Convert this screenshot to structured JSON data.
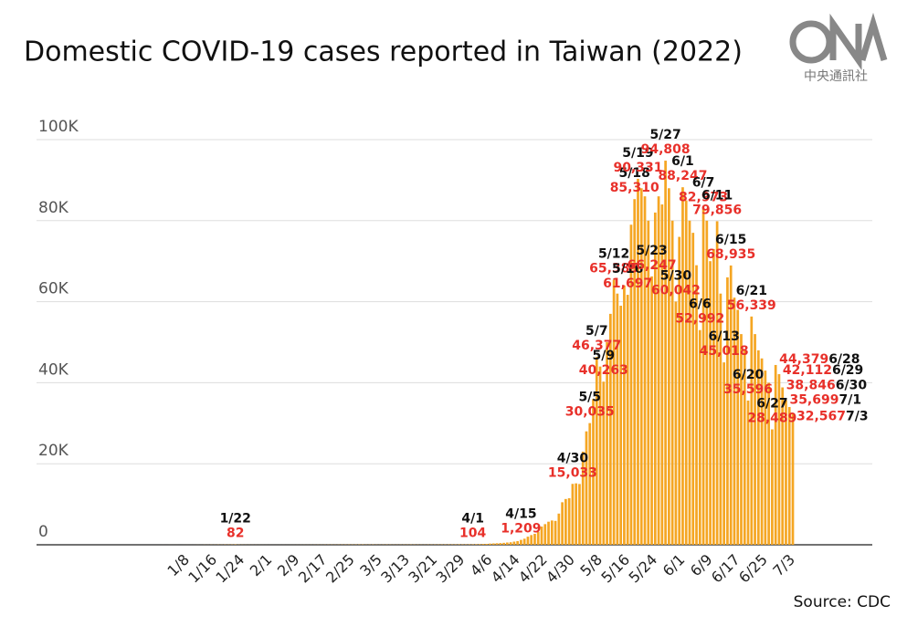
{
  "chart_data": {
    "type": "bar",
    "title": "Domestic COVID-19 cases reported in Taiwan (2022)",
    "source": "Source: CDC",
    "logo_text": "中央通訊社",
    "color": "#f5a623",
    "label_color": "#e8302a",
    "date_color": "#111111",
    "grid": true,
    "ylim": [
      0,
      100000
    ],
    "yticks": [
      0,
      {
        "value": 20000,
        "label": "20K"
      },
      {
        "value": 40000,
        "label": "40K"
      },
      {
        "value": 60000,
        "label": "60K"
      },
      {
        "value": 80000,
        "label": "80K"
      },
      {
        "value": 100000,
        "label": "100K"
      }
    ],
    "categories": [
      null,
      null,
      null,
      null,
      null,
      null,
      null,
      "1/8",
      null,
      null,
      null,
      null,
      null,
      null,
      null,
      "1/16",
      null,
      null,
      null,
      null,
      null,
      null,
      null,
      "1/24",
      null,
      null,
      null,
      null,
      null,
      null,
      null,
      "2/1",
      null,
      null,
      null,
      null,
      null,
      null,
      null,
      "2/9",
      null,
      null,
      null,
      null,
      null,
      null,
      null,
      "2/17",
      null,
      null,
      null,
      null,
      null,
      null,
      null,
      "2/25",
      null,
      null,
      null,
      null,
      null,
      null,
      null,
      "3/5",
      null,
      null,
      null,
      null,
      null,
      null,
      null,
      "3/13",
      null,
      null,
      null,
      null,
      null,
      null,
      null,
      "3/21",
      null,
      null,
      null,
      null,
      null,
      null,
      null,
      "3/29",
      null,
      null,
      null,
      null,
      null,
      null,
      null,
      "4/6",
      null,
      null,
      null,
      null,
      null,
      null,
      null,
      "4/14",
      null,
      null,
      null,
      null,
      null,
      null,
      null,
      "4/22",
      null,
      null,
      null,
      null,
      null,
      null,
      null,
      "4/30",
      null,
      null,
      null,
      null,
      null,
      null,
      null,
      "5/8",
      null,
      null,
      null,
      null,
      null,
      null,
      null,
      "5/16",
      null,
      null,
      null,
      null,
      null,
      null,
      null,
      "5/24",
      null,
      null,
      null,
      null,
      null,
      null,
      null,
      "6/1",
      null,
      null,
      null,
      null,
      null,
      null,
      null,
      "6/9",
      null,
      null,
      null,
      null,
      null,
      null,
      null,
      "6/17",
      null,
      null,
      null,
      null,
      null,
      null,
      null,
      "6/25",
      null,
      null,
      null,
      null,
      null,
      null,
      null,
      "7/3"
    ],
    "values": [
      2,
      1,
      4,
      3,
      2,
      1,
      3,
      5,
      2,
      4,
      11,
      7,
      20,
      15,
      30,
      28,
      40,
      35,
      50,
      48,
      60,
      82,
      45,
      30,
      25,
      20,
      18,
      15,
      12,
      10,
      8,
      6,
      5,
      4,
      6,
      8,
      5,
      7,
      10,
      12,
      15,
      20,
      18,
      22,
      25,
      30,
      28,
      35,
      40,
      42,
      38,
      45,
      50,
      55,
      60,
      58,
      62,
      70,
      75,
      50,
      55,
      60,
      45,
      40,
      50,
      55,
      48,
      42,
      38,
      45,
      50,
      52,
      60,
      55,
      48,
      42,
      40,
      50,
      55,
      60,
      65,
      70,
      75,
      80,
      85,
      90,
      95,
      88,
      92,
      98,
      104,
      130,
      150,
      200,
      230,
      300,
      340,
      380,
      420,
      480,
      560,
      620,
      780,
      900,
      1209,
      1500,
      2000,
      2400,
      2700,
      3200,
      4500,
      5100,
      5700,
      6000,
      5900,
      7700,
      10500,
      11300,
      11500,
      15033,
      15160,
      15000,
      23000,
      28000,
      30035,
      36000,
      46377,
      44000,
      40263,
      50000,
      57000,
      65385,
      62000,
      59000,
      64000,
      61697,
      79000,
      85310,
      90331,
      88000,
      86000,
      80000,
      66247,
      82000,
      86000,
      84000,
      94808,
      88000,
      80000,
      60042,
      76000,
      88247,
      85000,
      80000,
      77000,
      69000,
      52992,
      82973,
      80000,
      70000,
      73000,
      79856,
      62000,
      45018,
      66000,
      68935,
      61000,
      58000,
      52000,
      48000,
      35596,
      56339,
      52000,
      48000,
      46000,
      43000,
      40000,
      28489,
      44379,
      42112,
      38846,
      35699,
      34000,
      32567
    ],
    "value_labels": [
      null,
      null,
      null,
      null,
      null,
      null,
      null,
      null,
      null,
      null,
      null,
      null,
      null,
      null,
      null,
      null,
      null,
      null,
      null,
      null,
      null,
      "82",
      null,
      null,
      null,
      null,
      null,
      null,
      null,
      null,
      null,
      null,
      null,
      null,
      null,
      null,
      null,
      null,
      null,
      null,
      null,
      null,
      null,
      null,
      null,
      null,
      null,
      null,
      null,
      null,
      null,
      null,
      null,
      null,
      null,
      null,
      null,
      null,
      null,
      null,
      null,
      null,
      null,
      null,
      null,
      null,
      null,
      null,
      null,
      null,
      null,
      null,
      null,
      null,
      null,
      null,
      null,
      null,
      null,
      null,
      null,
      null,
      null,
      null,
      null,
      null,
      null,
      null,
      null,
      null,
      "104",
      null,
      null,
      null,
      null,
      null,
      null,
      null,
      null,
      null,
      null,
      null,
      null,
      null,
      "1,209",
      null,
      null,
      null,
      null,
      null,
      null,
      null,
      null,
      null,
      null,
      null,
      null,
      null,
      null,
      "15,033",
      null,
      null,
      null,
      null,
      "30,035",
      null,
      "46,377",
      null,
      "40,263",
      null,
      null,
      "65,385",
      null,
      null,
      null,
      "61,697",
      null,
      "85,310",
      "90,331",
      null,
      null,
      null,
      "66,247",
      null,
      null,
      null,
      "94,808",
      null,
      null,
      "60,042",
      null,
      "88,247",
      null,
      null,
      null,
      null,
      "52,992",
      "82,973",
      null,
      null,
      null,
      "79,856",
      null,
      "45,018",
      null,
      "68,935",
      null,
      null,
      null,
      null,
      "35,596",
      "56,339",
      null,
      null,
      null,
      null,
      null,
      "28,489",
      "44,379",
      "42,112",
      "38,846",
      "35,699",
      null,
      "32,567"
    ],
    "date_labels": [
      null,
      null,
      null,
      null,
      null,
      null,
      null,
      null,
      null,
      null,
      null,
      null,
      null,
      null,
      null,
      null,
      null,
      null,
      null,
      null,
      null,
      "1/22",
      null,
      null,
      null,
      null,
      null,
      null,
      null,
      null,
      null,
      null,
      null,
      null,
      null,
      null,
      null,
      null,
      null,
      null,
      null,
      null,
      null,
      null,
      null,
      null,
      null,
      null,
      null,
      null,
      null,
      null,
      null,
      null,
      null,
      null,
      null,
      null,
      null,
      null,
      null,
      null,
      null,
      null,
      null,
      null,
      null,
      null,
      null,
      null,
      null,
      null,
      null,
      null,
      null,
      null,
      null,
      null,
      null,
      null,
      null,
      null,
      null,
      null,
      null,
      null,
      null,
      null,
      null,
      null,
      "4/1",
      null,
      null,
      null,
      null,
      null,
      null,
      null,
      null,
      null,
      null,
      null,
      null,
      null,
      "4/15",
      null,
      null,
      null,
      null,
      null,
      null,
      null,
      null,
      null,
      null,
      null,
      null,
      null,
      null,
      "4/30",
      null,
      null,
      null,
      null,
      "5/5",
      null,
      "5/7",
      null,
      "5/9",
      null,
      null,
      "5/12",
      null,
      null,
      null,
      "5/16",
      null,
      "5/18",
      "5/19",
      null,
      null,
      null,
      "5/23",
      null,
      null,
      null,
      "5/27",
      null,
      null,
      "5/30",
      null,
      "6/1",
      null,
      null,
      null,
      null,
      "6/6",
      "6/7",
      null,
      null,
      null,
      "6/11",
      null,
      "6/13",
      null,
      "6/15",
      null,
      null,
      null,
      null,
      "6/20",
      "6/21",
      null,
      null,
      null,
      null,
      null,
      "6/27",
      "6/28",
      "6/29",
      "6/30",
      "7/1",
      null,
      "7/3"
    ]
  }
}
